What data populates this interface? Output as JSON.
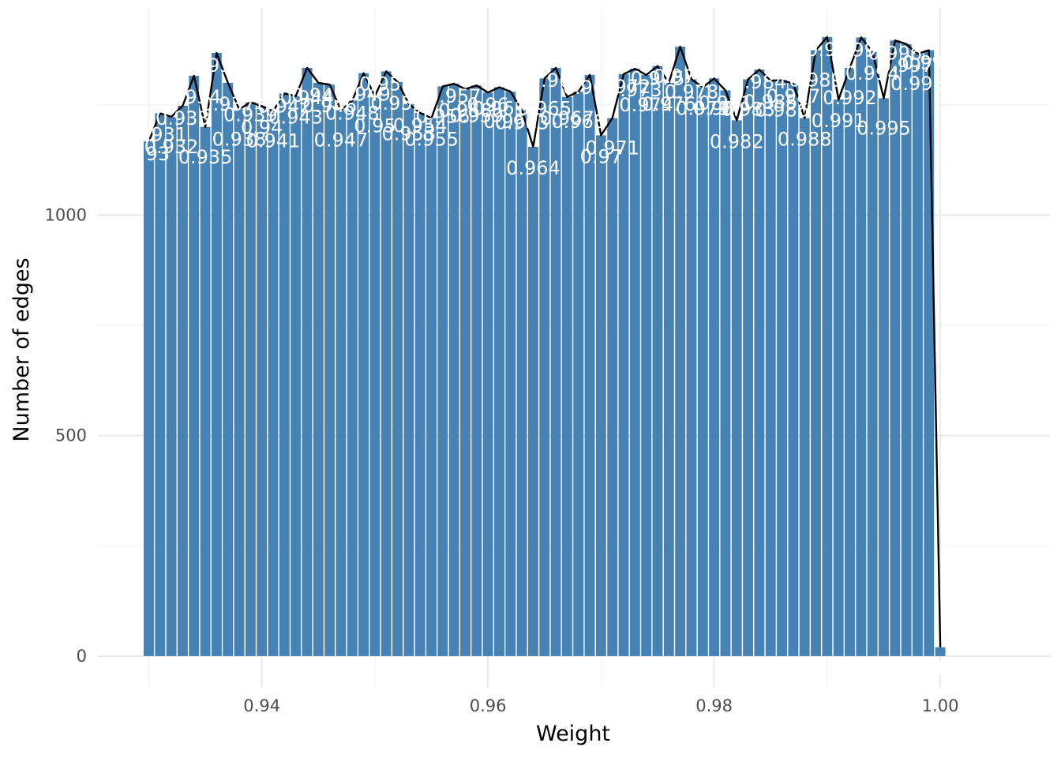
{
  "chart_data": {
    "type": "bar",
    "xlabel": "Weight",
    "ylabel": "Number of edges",
    "xlim": [
      0.9255,
      1.0097
    ],
    "ylim": [
      -70,
      1470
    ],
    "x_ticks": [
      0.94,
      0.96,
      0.98,
      1.0
    ],
    "x_tick_labels": [
      "0.94",
      "0.96",
      "0.98",
      "1.00"
    ],
    "y_ticks": [
      0,
      500,
      1000
    ],
    "y_tick_labels": [
      "0",
      "500",
      "1000"
    ],
    "grid": true,
    "bar_color": "#4682B4",
    "line_color": "#000000",
    "label_color": "#ffffff",
    "x": [
      0.93,
      0.931,
      0.932,
      0.933,
      0.934,
      0.935,
      0.936,
      0.937,
      0.938,
      0.939,
      0.94,
      0.941,
      0.942,
      0.943,
      0.944,
      0.945,
      0.946,
      0.947,
      0.948,
      0.949,
      0.95,
      0.951,
      0.952,
      0.953,
      0.954,
      0.955,
      0.956,
      0.957,
      0.958,
      0.959,
      0.96,
      0.961,
      0.962,
      0.963,
      0.964,
      0.965,
      0.966,
      0.967,
      0.968,
      0.969,
      0.97,
      0.971,
      0.972,
      0.973,
      0.974,
      0.975,
      0.976,
      0.977,
      0.978,
      0.979,
      0.98,
      0.981,
      0.982,
      0.983,
      0.984,
      0.985,
      0.986,
      0.987,
      0.988,
      0.989,
      0.99,
      0.991,
      0.992,
      0.993,
      0.994,
      0.995,
      0.996,
      0.997,
      0.998,
      0.999,
      1.0
    ],
    "values": [
      1167,
      1231,
      1223,
      1248,
      1316,
      1200,
      1368,
      1300,
      1240,
      1256,
      1247,
      1236,
      1276,
      1270,
      1334,
      1300,
      1296,
      1238,
      1260,
      1322,
      1270,
      1326,
      1302,
      1252,
      1232,
      1220,
      1292,
      1298,
      1286,
      1294,
      1278,
      1290,
      1280,
      1238,
      1155,
      1310,
      1334,
      1268,
      1280,
      1318,
      1181,
      1220,
      1320,
      1332,
      1318,
      1338,
      1300,
      1382,
      1308,
      1290,
      1310,
      1283,
      1215,
      1308,
      1330,
      1305,
      1306,
      1298,
      1220,
      1374,
      1404,
      1262,
      1334,
      1403,
      1370,
      1265,
      1396,
      1388,
      1366,
      1374,
      20
    ],
    "labels": [
      "0.93",
      "0.931",
      "0.932",
      "0.933",
      "0.934",
      "0.935",
      "0.936",
      "0.937",
      "0.938",
      "0.939",
      "0.94",
      "0.941",
      "0.942",
      "0.943",
      "0.944",
      "0.945",
      "0.946",
      "0.947",
      "0.948",
      "0.949",
      "0.95",
      "0.951",
      "0.952",
      "0.953",
      "0.954",
      "0.955",
      "0.956",
      "0.957",
      "0.958",
      "0.959",
      "0.96",
      "0.961",
      "0.962",
      "0.963",
      "0.964",
      "0.965",
      "0.966",
      "0.967",
      "0.968",
      "0.969",
      "0.97",
      "0.971",
      "0.972",
      "0.973",
      "0.974",
      "0.975",
      "0.976",
      "0.977",
      "0.978",
      "0.979",
      "0.98",
      "0.981",
      "0.982",
      "0.983",
      "0.984",
      "0.985",
      "0.986",
      "0.987",
      "0.988",
      "0.989",
      "0.99",
      "0.991",
      "0.992",
      "0.993",
      "0.994",
      "0.995",
      "0.996",
      "0.997",
      "0.998",
      "0.999",
      "1"
    ]
  }
}
